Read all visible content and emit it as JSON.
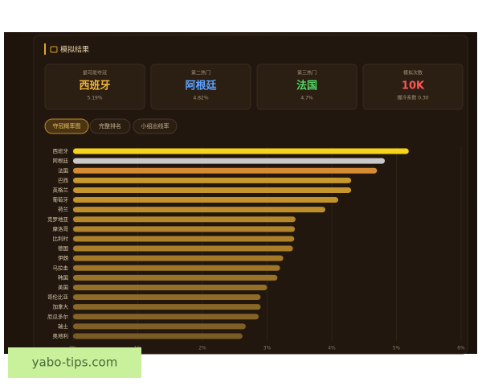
{
  "header": {
    "title": "模拟结果"
  },
  "stats": [
    {
      "label": "最可能夺冠",
      "value": "西班牙",
      "sub": "5.19%",
      "color": "#f2b53a"
    },
    {
      "label": "第二热门",
      "value": "阿根廷",
      "sub": "4.82%",
      "color": "#5ea2ff"
    },
    {
      "label": "第三热门",
      "value": "法国",
      "sub": "4.7%",
      "color": "#55d565"
    },
    {
      "label": "模拟次数",
      "value": "10K",
      "sub": "爆冷系数 0.30",
      "color": "#ff5454"
    }
  ],
  "tabs": [
    "夺冠概率图",
    "完整排名",
    "小组出线率"
  ],
  "chart_data": {
    "type": "hbar",
    "categories": [
      "西班牙",
      "阿根廷",
      "法国",
      "巴西",
      "英格兰",
      "葡萄牙",
      "荷兰",
      "克罗地亚",
      "摩洛哥",
      "比利时",
      "德国",
      "伊朗",
      "乌拉圭",
      "韩国",
      "美国",
      "哥伦比亚",
      "加拿大",
      "厄瓜多尔",
      "瑞士",
      "奥地利"
    ],
    "values": [
      5.19,
      4.82,
      4.7,
      4.3,
      4.3,
      4.1,
      3.9,
      3.44,
      3.43,
      3.42,
      3.4,
      3.25,
      3.2,
      3.16,
      3.0,
      2.9,
      2.9,
      2.87,
      2.67,
      2.62
    ],
    "colors": [
      "#f7d417",
      "#c9c9c9",
      "#d58b35",
      "#c9992d",
      "#c6962c",
      "#c2922b",
      "#bd8e2b",
      "#b4872a",
      "#b0842a",
      "#ac8129",
      "#a87e29",
      "#a37a28",
      "#9e7628",
      "#997328",
      "#946f28",
      "#8f6b27",
      "#8a6727",
      "#856327",
      "#7f5f27",
      "#7a5b26"
    ],
    "xlim": [
      0,
      6
    ],
    "xticks": [
      {
        "value": 0,
        "label": "0%"
      },
      {
        "value": 1,
        "label": "1%"
      },
      {
        "value": 2,
        "label": "2%"
      },
      {
        "value": 3,
        "label": "3%"
      },
      {
        "value": 4,
        "label": "4%"
      },
      {
        "value": 5,
        "label": "5%"
      },
      {
        "value": 6,
        "label": "6%"
      }
    ],
    "grid": true
  },
  "watermark": "yabo-tips.com"
}
